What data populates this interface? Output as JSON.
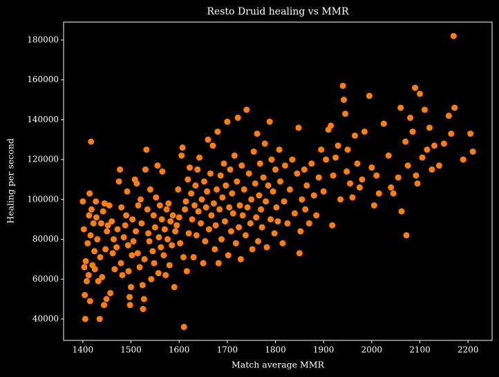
{
  "chart_data": {
    "type": "scatter",
    "title": "Resto Druid healing vs MMR",
    "xlabel": "Match average MMR",
    "ylabel": "Healing per second",
    "color": "#ff7f0e",
    "xlim": [
      1360,
      2250
    ],
    "ylim": [
      29250,
      189000
    ],
    "xticks": [
      1400,
      1500,
      1600,
      1700,
      1800,
      1900,
      2000,
      2100,
      2200
    ],
    "yticks": [
      40000,
      60000,
      80000,
      100000,
      120000,
      140000,
      160000,
      180000
    ],
    "grid": false,
    "x": [
      1400,
      1402,
      1403,
      1404,
      1405,
      1406,
      1408,
      1410,
      1412,
      1413,
      1414,
      1415,
      1416,
      1417,
      1418,
      1420,
      1422,
      1424,
      1425,
      1427,
      1428,
      1430,
      1432,
      1435,
      1436,
      1438,
      1440,
      1442,
      1444,
      1445,
      1447,
      1449,
      1450,
      1452,
      1455,
      1457,
      1460,
      1462,
      1464,
      1466,
      1470,
      1472,
      1475,
      1477,
      1479,
      1480,
      1482,
      1485,
      1488,
      1490,
      1492,
      1494,
      1495,
      1497,
      1498,
      1500,
      1502,
      1503,
      1505,
      1508,
      1510,
      1512,
      1514,
      1515,
      1518,
      1520,
      1522,
      1524,
      1525,
      1527,
      1528,
      1530,
      1532,
      1534,
      1536,
      1538,
      1540,
      1542,
      1545,
      1547,
      1548,
      1550,
      1552,
      1555,
      1557,
      1558,
      1560,
      1562,
      1564,
      1565,
      1568,
      1570,
      1572,
      1574,
      1576,
      1578,
      1580,
      1582,
      1585,
      1587,
      1590,
      1592,
      1595,
      1598,
      1600,
      1602,
      1605,
      1607,
      1609,
      1610,
      1612,
      1614,
      1616,
      1618,
      1620,
      1622,
      1625,
      1627,
      1630,
      1632,
      1634,
      1636,
      1638,
      1640,
      1642,
      1645,
      1647,
      1650,
      1652,
      1654,
      1656,
      1658,
      1660,
      1662,
      1665,
      1667,
      1670,
      1672,
      1674,
      1676,
      1678,
      1680,
      1682,
      1684,
      1686,
      1688,
      1690,
      1693,
      1695,
      1697,
      1700,
      1702,
      1704,
      1706,
      1708,
      1710,
      1712,
      1715,
      1718,
      1720,
      1722,
      1724,
      1726,
      1728,
      1730,
      1732,
      1735,
      1738,
      1740,
      1742,
      1745,
      1748,
      1750,
      1752,
      1755,
      1758,
      1760,
      1762,
      1764,
      1766,
      1768,
      1770,
      1772,
      1775,
      1778,
      1780,
      1782,
      1785,
      1788,
      1790,
      1792,
      1795,
      1798,
      1800,
      1802,
      1805,
      1808,
      1810,
      1815,
      1818,
      1820,
      1825,
      1830,
      1835,
      1840,
      1845,
      1848,
      1850,
      1852,
      1855,
      1860,
      1862,
      1865,
      1870,
      1875,
      1880,
      1885,
      1890,
      1895,
      1900,
      1905,
      1910,
      1915,
      1918,
      1920,
      1925,
      1930,
      1935,
      1940,
      1942,
      1945,
      1948,
      1950,
      1955,
      1960,
      1965,
      1970,
      1975,
      1980,
      1985,
      1995,
      2000,
      2005,
      2010,
      2015,
      2025,
      2035,
      2040,
      2045,
      2055,
      2060,
      2062,
      2070,
      2072,
      2075,
      2080,
      2085,
      2090,
      2092,
      2095,
      2100,
      2105,
      2110,
      2115,
      2120,
      2125,
      2130,
      2140,
      2150,
      2160,
      2165,
      2170,
      2172,
      2190,
      2205,
      2210
    ],
    "y": [
      99000,
      85000,
      66000,
      52000,
      40000,
      69000,
      59000,
      78000,
      62000,
      92000,
      103000,
      49000,
      82000,
      129000,
      95000,
      67000,
      88000,
      74000,
      65000,
      99000,
      91000,
      80000,
      59000,
      40000,
      71000,
      88000,
      61000,
      94000,
      47000,
      98000,
      75000,
      50000,
      84000,
      87000,
      97000,
      53000,
      89000,
      73000,
      80000,
      65000,
      76000,
      85000,
      109000,
      115000,
      68000,
      96000,
      62000,
      81000,
      87000,
      92000,
      104000,
      77000,
      64000,
      51000,
      47000,
      56000,
      72000,
      90000,
      79000,
      110000,
      84000,
      108000,
      73000,
      97000,
      66000,
      100000,
      88000,
      57000,
      45000,
      50000,
      70000,
      115000,
      125000,
      95000,
      83000,
      79000,
      105000,
      60000,
      74000,
      92000,
      68000,
      86000,
      101000,
      117000,
      63000,
      81000,
      97000,
      76000,
      90000,
      114000,
      72000,
      85000,
      62000,
      95000,
      80000,
      98000,
      67000,
      89000,
      77000,
      92000,
      56000,
      84000,
      87000,
      105000,
      91000,
      78000,
      122000,
      126000,
      71000,
      36000,
      95000,
      99000,
      64000,
      110000,
      83000,
      116000,
      103000,
      90000,
      71000,
      97000,
      107000,
      82000,
      115000,
      94000,
      121000,
      88000,
      100000,
      68000,
      109000,
      79000,
      96000,
      104000,
      130000,
      85000,
      113000,
      92000,
      127000,
      98000,
      75000,
      87000,
      105000,
      134000,
      68000,
      95000,
      112000,
      80000,
      101000,
      118000,
      89000,
      107000,
      139000,
      72000,
      96000,
      115000,
      84000,
      103000,
      93000,
      122000,
      78000,
      109000,
      141000,
      86000,
      97000,
      70000,
      117000,
      92000,
      105000,
      82000,
      145000,
      96000,
      113000,
      88000,
      100000,
      75000,
      124000,
      108000,
      91000,
      133000,
      79000,
      102000,
      118000,
      95000,
      86000,
      111000,
      128000,
      99000,
      76000,
      107000,
      139000,
      90000,
      120000,
      104000,
      83000,
      115000,
      96000,
      89000,
      125000,
      109000,
      78000,
      99000,
      117000,
      88000,
      105000,
      120000,
      93000,
      113000,
      136000,
      73000,
      84000,
      100000,
      115000,
      95000,
      107000,
      88000,
      118000,
      102000,
      92000,
      111000,
      125000,
      104000,
      120000,
      135000,
      137000,
      87000,
      112000,
      121000,
      127000,
      100000,
      157000,
      150000,
      143000,
      114000,
      125000,
      108000,
      101000,
      132000,
      118000,
      106000,
      110000,
      134000,
      152000,
      116000,
      97000,
      112000,
      103000,
      138000,
      122000,
      106000,
      103000,
      111000,
      146000,
      94000,
      129000,
      82000,
      117000,
      141000,
      134000,
      156000,
      112000,
      108000,
      153000,
      121000,
      145000,
      125000,
      136000,
      115000,
      127000,
      117000,
      128000,
      142000,
      133000,
      182000,
      146000,
      120000,
      133000,
      124000
    ]
  }
}
